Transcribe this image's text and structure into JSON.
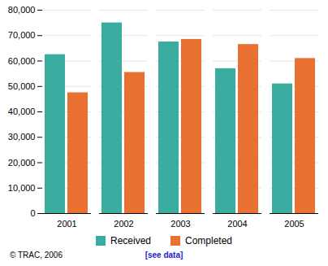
{
  "chart_data": {
    "type": "bar",
    "categories": [
      "2001",
      "2002",
      "2003",
      "2004",
      "2005"
    ],
    "series": [
      {
        "name": "Received",
        "color": "#3aada0",
        "values": [
          62500,
          75000,
          67500,
          57000,
          51000
        ]
      },
      {
        "name": "Completed",
        "color": "#e87030",
        "values": [
          47500,
          55500,
          68500,
          66500,
          61000
        ]
      }
    ],
    "ylim": [
      0,
      80000
    ],
    "yticks": [
      0,
      {
        "value": 10000,
        "label": "10,000"
      },
      {
        "value": 20000,
        "label": "20,000"
      },
      {
        "value": 30000,
        "label": "30,000"
      },
      {
        "value": 40000,
        "label": "40,000"
      },
      {
        "value": 50000,
        "label": "50,000"
      },
      {
        "value": 60000,
        "label": "60,000"
      },
      {
        "value": 70000,
        "label": "70,000"
      },
      {
        "value": 80000,
        "label": "80,000"
      }
    ],
    "grid": true,
    "legend": "bottom",
    "annotations": [
      {
        "text": "© TRAC, 2006"
      },
      {
        "text": "[see data]",
        "color": "#2222cc"
      }
    ]
  }
}
